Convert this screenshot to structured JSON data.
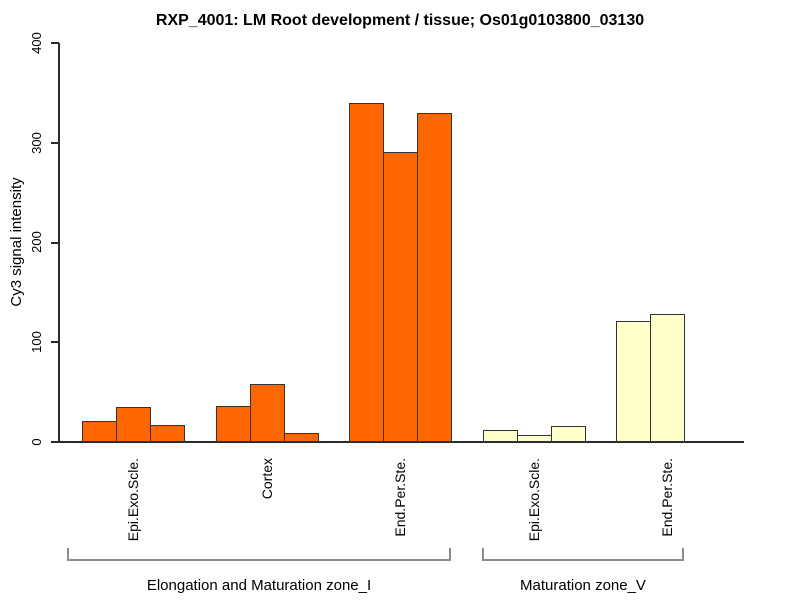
{
  "chart_data": {
    "type": "bar",
    "title": "RXP_4001: LM Root development / tissue; Os01g0103800_03130",
    "xlabel": "",
    "ylabel": "Cy3 signal intensity",
    "ylim": [
      0,
      400
    ],
    "yticks": [
      0,
      100,
      200,
      300,
      400
    ],
    "grid": false,
    "legend": null,
    "bar_border_color": "#333333",
    "axis_color": "#2b2b2b",
    "bracket_color": "#8c8c8c",
    "groups": [
      {
        "label": "Epi.Exo.Scle.",
        "zone": "Elongation and Maturation zone_I",
        "color": "#FF6600",
        "values": [
          21,
          35,
          17
        ]
      },
      {
        "label": "Cortex",
        "zone": "Elongation and Maturation zone_I",
        "color": "#FF6600",
        "values": [
          36,
          58,
          9
        ]
      },
      {
        "label": "End.Per.Ste.",
        "zone": "Elongation and Maturation zone_I",
        "color": "#FF6600",
        "values": [
          340,
          291,
          330
        ]
      },
      {
        "label": "Epi.Exo.Scle.",
        "zone": "Maturation zone_V",
        "color": "#FFFFCC",
        "values": [
          12,
          7,
          16
        ]
      },
      {
        "label": "End.Per.Ste.",
        "zone": "Maturation zone_V",
        "color": "#FFFFCC",
        "values": [
          121,
          128
        ]
      }
    ],
    "zones": [
      {
        "label": "Elongation and Maturation zone_I"
      },
      {
        "label": "Maturation zone_V"
      }
    ]
  }
}
